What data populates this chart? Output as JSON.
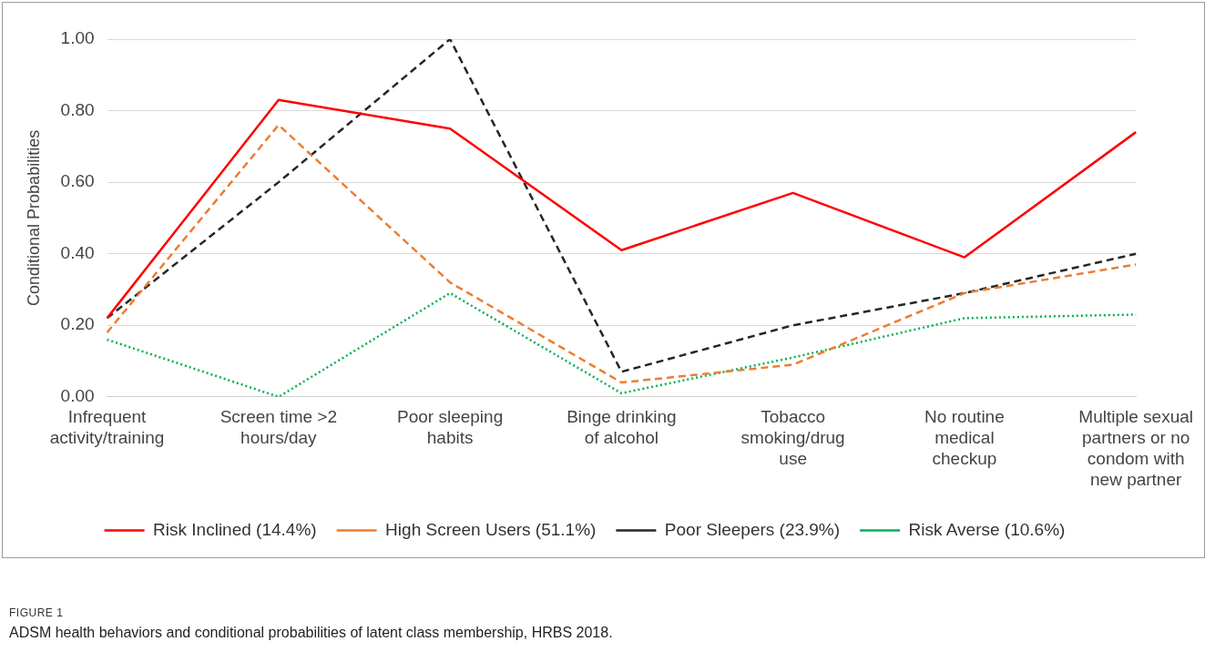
{
  "chart_data": {
    "type": "line",
    "ylabel": "Conditional Probabilities",
    "categories": [
      "Infrequent activity/training",
      "Screen time >2 hours/day",
      "Poor sleeping habits",
      "Binge drinking of alcohol",
      "Tobacco smoking/drug use",
      "No routine medical checkup",
      "Multiple sexual partners or no condom with new partner"
    ],
    "series": [
      {
        "name": "Risk Inclined (14.4%)",
        "color": "#ff0000",
        "line_style": "solid",
        "values": [
          0.22,
          0.83,
          0.75,
          0.41,
          0.57,
          0.39,
          0.74
        ]
      },
      {
        "name": "High Screen Users (51.1%)",
        "color": "#ed7d31",
        "line_style": "dashed",
        "values": [
          0.18,
          0.76,
          0.32,
          0.04,
          0.09,
          0.29,
          0.37
        ]
      },
      {
        "name": "Poor Sleepers (23.9%)",
        "color": "#262626",
        "line_style": "dashed",
        "values": [
          0.22,
          0.6,
          1.0,
          0.07,
          0.2,
          0.29,
          0.4
        ]
      },
      {
        "name": "Risk Averse (10.6%)",
        "color": "#00b050",
        "line_style": "dotted",
        "values": [
          0.16,
          0.0,
          0.29,
          0.01,
          0.11,
          0.22,
          0.23
        ]
      }
    ],
    "ylim": [
      0,
      1
    ],
    "yticks": [
      {
        "value": 0,
        "label": "0.00"
      },
      {
        "value": 0.2,
        "label": "0.20"
      },
      {
        "value": 0.4,
        "label": "0.40"
      },
      {
        "value": 0.6,
        "label": "0.60"
      },
      {
        "value": 0.8,
        "label": "0.80"
      },
      {
        "value": 1,
        "label": "1.00"
      }
    ],
    "grid": "y",
    "legend": "bottom",
    "marker": "none",
    "annotations": [
      "FIGURE 1",
      "ADSM health behaviors and conditional probabilities of latent class membership, HRBS 2018."
    ]
  }
}
